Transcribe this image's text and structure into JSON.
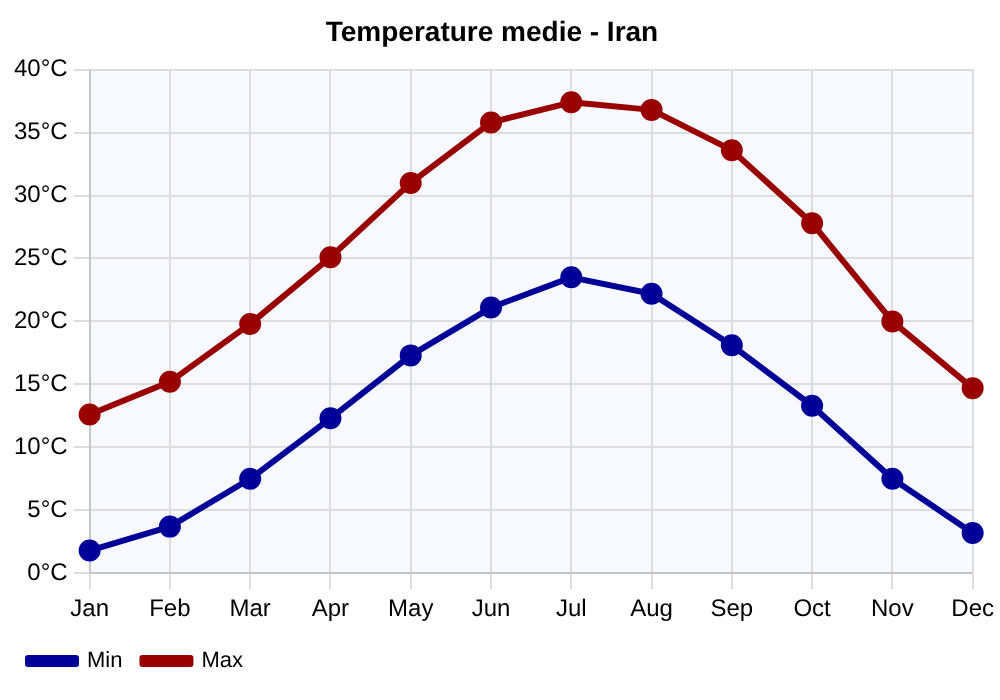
{
  "chart_data": {
    "type": "line",
    "title": "Temperature medie - Iran",
    "categories": [
      "Jan",
      "Feb",
      "Mar",
      "Apr",
      "May",
      "Jun",
      "Jul",
      "Aug",
      "Sep",
      "Oct",
      "Nov",
      "Dec"
    ],
    "series": [
      {
        "name": "Min",
        "color": "#000099",
        "values": [
          1.8,
          3.7,
          7.5,
          12.3,
          17.3,
          21.1,
          23.5,
          22.2,
          18.1,
          13.3,
          7.5,
          3.2
        ]
      },
      {
        "name": "Max",
        "color": "#990000",
        "values": [
          12.6,
          15.2,
          19.8,
          25.1,
          31.0,
          35.8,
          37.4,
          36.8,
          33.6,
          27.8,
          20.0,
          14.7
        ]
      }
    ],
    "ylim": [
      0,
      40
    ],
    "yticks": [
      {
        "value": 0,
        "label": "0°C"
      },
      {
        "value": 5,
        "label": "5°C"
      },
      {
        "value": 10,
        "label": "10°C"
      },
      {
        "value": 15,
        "label": "15°C"
      },
      {
        "value": 20,
        "label": "20°C"
      },
      {
        "value": 25,
        "label": "25°C"
      },
      {
        "value": 30,
        "label": "30°C"
      },
      {
        "value": 35,
        "label": "35°C"
      },
      {
        "value": 40,
        "label": "40°C"
      }
    ],
    "grid": true,
    "legend": "bottom left",
    "marker": "circle",
    "line_style": "solid"
  }
}
